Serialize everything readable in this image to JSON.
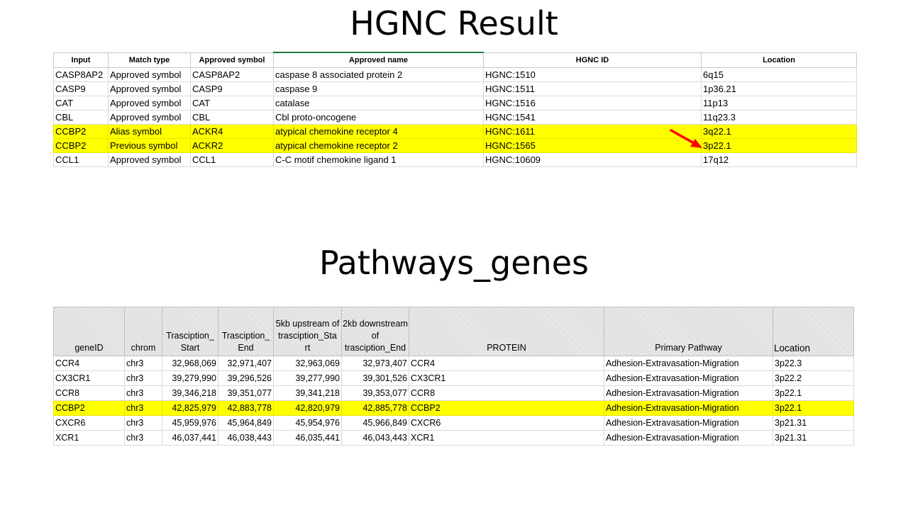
{
  "slide": {
    "title1": "HGNC Result",
    "title2": "Pathways_genes"
  },
  "hgnc": {
    "headers": [
      "Input",
      "Match type",
      "Approved symbol",
      "Approved name",
      "HGNC ID",
      "Location"
    ],
    "rows": [
      [
        "CASP8AP2",
        "Approved symbol",
        "CASP8AP2",
        "caspase 8 associated protein 2",
        "HGNC:1510",
        "6q15"
      ],
      [
        "CASP9",
        "Approved symbol",
        "CASP9",
        "caspase 9",
        "HGNC:1511",
        "1p36.21"
      ],
      [
        "CAT",
        "Approved symbol",
        "CAT",
        "catalase",
        "HGNC:1516",
        "11p13"
      ],
      [
        "CBL",
        "Approved symbol",
        "CBL",
        "Cbl proto-oncogene",
        "HGNC:1541",
        "11q23.3"
      ],
      [
        "CCBP2",
        "Alias symbol",
        "ACKR4",
        "atypical chemokine receptor 4",
        "HGNC:1611",
        "3q22.1"
      ],
      [
        "CCBP2",
        "Previous symbol",
        "ACKR2",
        "atypical chemokine receptor 2",
        "HGNC:1565",
        "3p22.1"
      ],
      [
        "CCL1",
        "Approved symbol",
        "CCL1",
        "C-C motif chemokine ligand 1",
        "HGNC:10609",
        "17q12"
      ]
    ],
    "highlight_color": "#ffff00"
  },
  "pathways": {
    "headers": [
      "geneID",
      "chrom",
      "Trasciption_ Start",
      "Trasciption_ End",
      "5kb upstream of trasciption_Sta rt",
      "2kb downstream of trasciption_End",
      "PROTEIN",
      "Primary Pathway",
      "Location"
    ],
    "rows": [
      [
        "CCR4",
        "chr3",
        "32,968,069",
        "32,971,407",
        "32,963,069",
        "32,973,407",
        "CCR4",
        "Adhesion-Extravasation-Migration",
        "3p22.3"
      ],
      [
        "CX3CR1",
        "chr3",
        "39,279,990",
        "39,296,526",
        "39,277,990",
        "39,301,526",
        "CX3CR1",
        "Adhesion-Extravasation-Migration",
        "3p22.2"
      ],
      [
        "CCR8",
        "chr3",
        "39,346,218",
        "39,351,077",
        "39,341,218",
        "39,353,077",
        "CCR8",
        "Adhesion-Extravasation-Migration",
        "3p22.1"
      ],
      [
        "CCBP2",
        "chr3",
        "42,825,979",
        "42,883,778",
        "42,820,979",
        "42,885,778",
        "CCBP2",
        "Adhesion-Extravasation-Migration",
        "3p22.1"
      ],
      [
        "CXCR6",
        "chr3",
        "45,959,976",
        "45,964,849",
        "45,954,976",
        "45,966,849",
        "CXCR6",
        "Adhesion-Extravasation-Migration",
        "3p21.31"
      ],
      [
        "XCR1",
        "chr3",
        "46,037,441",
        "46,038,443",
        "46,035,441",
        "46,043,443",
        "XCR1",
        "Adhesion-Extravasation-Migration",
        "3p21.31"
      ]
    ]
  },
  "annotation": {
    "arrow_color": "#ff0000",
    "arrow_icon": "red-arrow-icon"
  }
}
